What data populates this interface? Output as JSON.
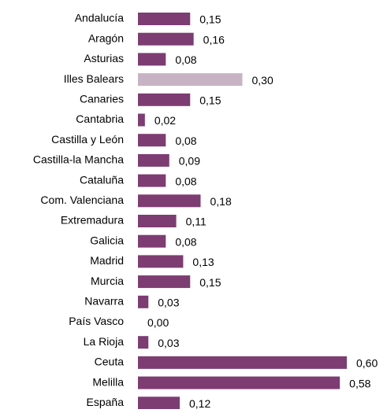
{
  "chart_data": {
    "type": "hbar",
    "categories": [
      "Andalucía",
      "Aragón",
      "Asturias",
      "Illes Balears",
      "Canaries",
      "Cantabria",
      "Castilla y León",
      "Castilla-la Mancha",
      "Cataluña",
      "Com. Valenciana",
      "Extremadura",
      "Galicia",
      "Madrid",
      "Murcia",
      "Navarra",
      "País Vasco",
      "La Rioja",
      "Ceuta",
      "Melilla",
      "España"
    ],
    "values": [
      0.15,
      0.16,
      0.08,
      0.3,
      0.15,
      0.02,
      0.08,
      0.09,
      0.08,
      0.18,
      0.11,
      0.08,
      0.13,
      0.15,
      0.03,
      0.0,
      0.03,
      0.6,
      0.58,
      0.12
    ],
    "value_labels": [
      "0,15",
      "0,16",
      "0,08",
      "0,30",
      "0,15",
      "0,02",
      "0,08",
      "0,09",
      "0,08",
      "0,18",
      "0,11",
      "0,08",
      "0,13",
      "0,15",
      "0,03",
      "0,00",
      "0,03",
      "0,60",
      "0,58",
      "0,12"
    ],
    "colors": [
      "#7d3c72",
      "#7d3c72",
      "#7d3c72",
      "#c7b3c4",
      "#7d3c72",
      "#7d3c72",
      "#7d3c72",
      "#7d3c72",
      "#7d3c72",
      "#7d3c72",
      "#7d3c72",
      "#7d3c72",
      "#7d3c72",
      "#7d3c72",
      "#7d3c72",
      "#7d3c72",
      "#7d3c72",
      "#7d3c72",
      "#7d3c72",
      "#7d3c72"
    ],
    "xlim": [
      0,
      0.6
    ]
  }
}
